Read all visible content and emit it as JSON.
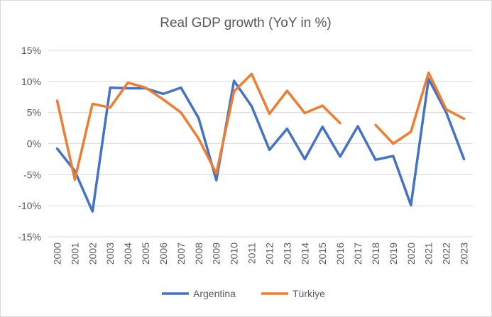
{
  "chart_data": {
    "type": "line",
    "title": "Real GDP growth (YoY in %)",
    "xlabel": "",
    "ylabel": "",
    "x": [
      "2000",
      "2001",
      "2002",
      "2003",
      "2004",
      "2005",
      "2006",
      "2007",
      "2008",
      "2009",
      "2010",
      "2011",
      "2012",
      "2013",
      "2014",
      "2015",
      "2016",
      "2017",
      "2018",
      "2019",
      "2020",
      "2021",
      "2022",
      "2023"
    ],
    "ylim": [
      -15,
      15
    ],
    "yticks": [
      15,
      10,
      5,
      0,
      -5,
      -10,
      -15
    ],
    "ytick_labels": [
      "15%",
      "10%",
      "5%",
      "0%",
      "-5%",
      "-10%",
      "-15%"
    ],
    "grid": true,
    "legend_position": "bottom",
    "series": [
      {
        "name": "Argentina",
        "color": "#4472c4",
        "values": [
          -0.8,
          -4.4,
          -10.9,
          9.0,
          8.9,
          8.9,
          8.0,
          9.0,
          4.1,
          -5.9,
          10.1,
          6.0,
          -1.0,
          2.4,
          -2.5,
          2.7,
          -2.1,
          2.8,
          -2.6,
          -2.0,
          -9.9,
          10.4,
          5.0,
          -2.5
        ]
      },
      {
        "name": "Türkiye",
        "color": "#ed7d31",
        "values": [
          6.9,
          -5.8,
          6.4,
          5.8,
          9.8,
          9.0,
          7.1,
          5.0,
          0.8,
          -4.8,
          8.4,
          11.2,
          4.8,
          8.5,
          4.9,
          6.1,
          3.3,
          null,
          3.0,
          0.0,
          1.9,
          11.4,
          5.5,
          4.0
        ]
      }
    ]
  }
}
